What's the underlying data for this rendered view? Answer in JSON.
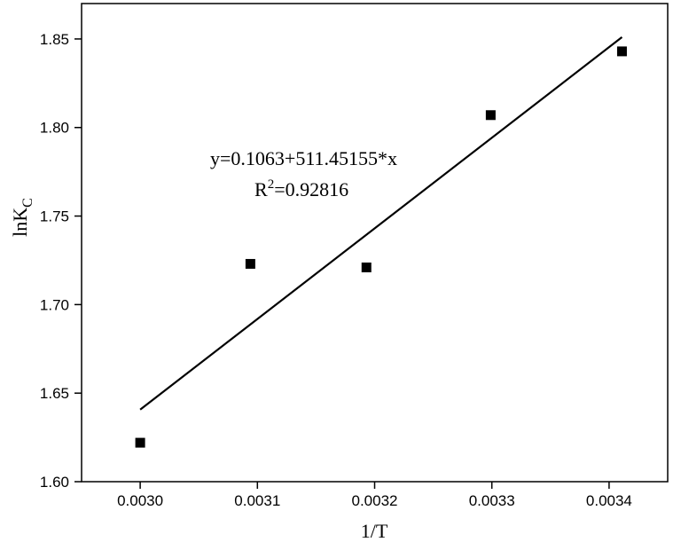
{
  "chart_data": {
    "type": "scatter",
    "title": "",
    "xlabel": "1/T",
    "ylabel_main": "lnK",
    "ylabel_sub": "C",
    "xlim": [
      0.00295,
      0.00345
    ],
    "ylim": [
      1.6,
      1.87
    ],
    "x_ticks": [
      0.003,
      0.0031,
      0.0032,
      0.0033,
      0.0034
    ],
    "x_tick_labels": [
      "0.0030",
      "0.0031",
      "0.0032",
      "0.0033",
      "0.0034"
    ],
    "y_ticks": [
      1.6,
      1.65,
      1.7,
      1.75,
      1.8,
      1.85
    ],
    "y_tick_labels": [
      "1.60",
      "1.65",
      "1.70",
      "1.75",
      "1.80",
      "1.85"
    ],
    "grid": false,
    "series": [
      {
        "type": "scatter",
        "marker": "square",
        "color": "#000000",
        "x": [
          0.003,
          0.003094,
          0.003193,
          0.003299,
          0.003411
        ],
        "y": [
          1.622,
          1.723,
          1.721,
          1.807,
          1.843
        ]
      },
      {
        "type": "line",
        "color": "#000000",
        "x": [
          0.003,
          0.003411
        ],
        "y": [
          1.6407,
          1.851
        ]
      }
    ],
    "annotations": {
      "equation": "y=0.1063+511.45155*x",
      "r2_prefix": "R",
      "r2_sup": "2",
      "r2_value": "=0.92816"
    }
  }
}
